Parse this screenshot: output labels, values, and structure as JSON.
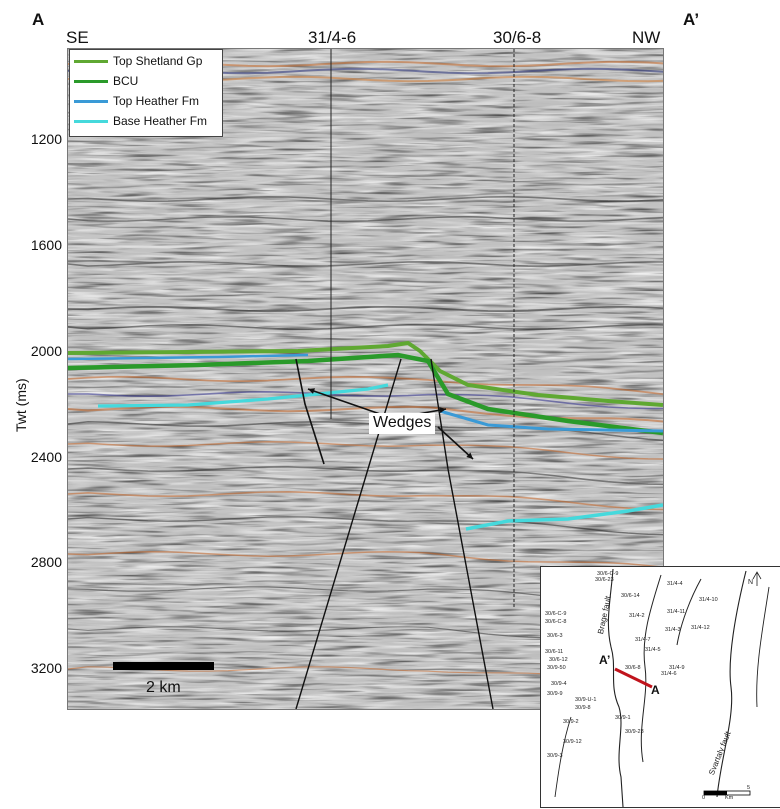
{
  "labels": {
    "a": "A",
    "a_prime": "A’",
    "se": "SE",
    "nw": "NW",
    "well_1": "31/4-6",
    "well_2": "30/6-8",
    "yaxis": "Twt (ms)",
    "wedges": "Wedges",
    "scale": "2 km"
  },
  "yticks": [
    "1200",
    "1600",
    "2000",
    "2400",
    "2800",
    "3200"
  ],
  "legend": [
    {
      "label": "Top Shetland Gp",
      "color": "#5fa832"
    },
    {
      "label": "BCU",
      "color": "#2a9a2a"
    },
    {
      "label": "Top Heather Fm",
      "color": "#3a9ad6"
    },
    {
      "label": "Base Heather Fm",
      "color": "#45d9dc"
    }
  ],
  "inset": {
    "a": "A",
    "a_prime": "A’",
    "north": "N",
    "brage_fault": "Brage fault",
    "svartalv_fault": "Svartalv fault",
    "scale_0": "0",
    "scale_5": "5",
    "scale_unit": "Km",
    "wells": [
      "30/6-C-9",
      "30/6-23",
      "31/4-4",
      "30/6-14",
      "31/4-10",
      "30/6-C-9",
      "30/6-C-8",
      "31/4-2",
      "31/4-11",
      "31/4-3",
      "31/4-12",
      "30/6-3",
      "31/4-7",
      "30/6-11",
      "31/4-5",
      "30/6-12",
      "30/9-50",
      "30/6-8",
      "31/4-9",
      "30/9-4",
      "31/4-6",
      "30/9-9",
      "30/9-U-1",
      "30/9-8",
      "30/9-1",
      "30/9-2",
      "30/9-23",
      "30/9-12",
      "30/9-3"
    ]
  }
}
